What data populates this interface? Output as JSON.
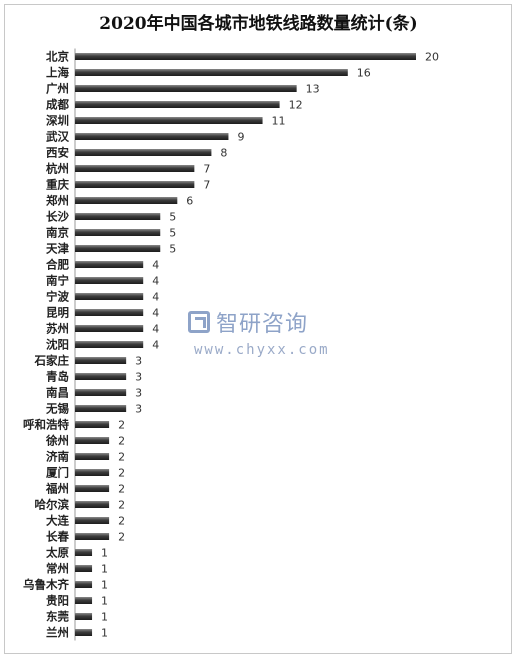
{
  "chart_data": {
    "type": "bar",
    "orientation": "horizontal",
    "title": "2020年中国各城市地铁线路数量统计(条)",
    "categories": [
      "北京",
      "上海",
      "广州",
      "成都",
      "深圳",
      "武汉",
      "西安",
      "杭州",
      "重庆",
      "郑州",
      "长沙",
      "南京",
      "天津",
      "合肥",
      "南宁",
      "宁波",
      "昆明",
      "苏州",
      "沈阳",
      "石家庄",
      "青岛",
      "南昌",
      "无锡",
      "呼和浩特",
      "徐州",
      "济南",
      "厦门",
      "福州",
      "哈尔滨",
      "大连",
      "长春",
      "太原",
      "常州",
      "乌鲁木齐",
      "贵阳",
      "东莞",
      "兰州"
    ],
    "values": [
      20,
      16,
      13,
      12,
      11,
      9,
      8,
      7,
      7,
      6,
      5,
      5,
      5,
      4,
      4,
      4,
      4,
      4,
      4,
      3,
      3,
      3,
      3,
      2,
      2,
      2,
      2,
      2,
      2,
      2,
      2,
      1,
      1,
      1,
      1,
      1,
      1
    ],
    "xlim": [
      0,
      20
    ],
    "grid": false,
    "bar_color": "#4a4a4a",
    "data_labels": true
  },
  "watermark": {
    "name": "智研咨询",
    "url": "www.chyxx.com"
  }
}
